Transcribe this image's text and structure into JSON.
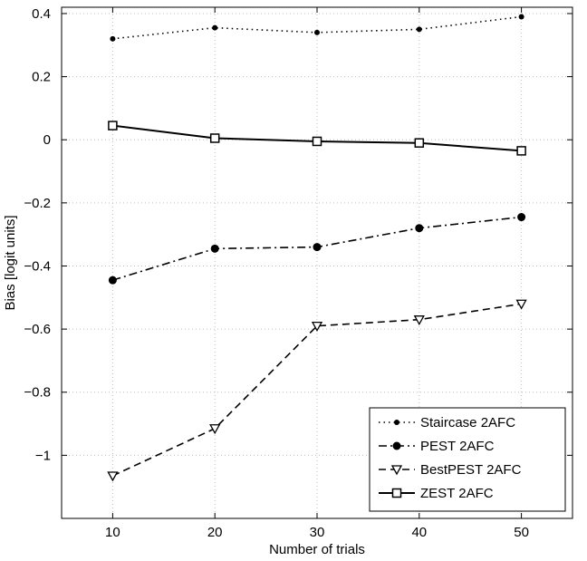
{
  "chart_data": {
    "type": "line",
    "title": "",
    "xlabel": "Number of trials",
    "ylabel": "Bias [logit units]",
    "x": [
      10,
      20,
      30,
      40,
      50
    ],
    "xticks": [
      "10",
      "20",
      "30",
      "40",
      "50"
    ],
    "yticks": [
      "0.4",
      "0.2",
      "0",
      "−0.2",
      "−0.4",
      "−0.6",
      "−0.8",
      "−1"
    ],
    "xlim": [
      5,
      55
    ],
    "ylim": [
      -1.2,
      0.42
    ],
    "grid": true,
    "legend_position": "bottom-right",
    "series": [
      {
        "name": "Staircase 2AFC",
        "values": [
          0.32,
          0.355,
          0.34,
          0.35,
          0.39
        ],
        "line": "dotted",
        "marker": "dot"
      },
      {
        "name": "PEST 2AFC",
        "values": [
          -0.445,
          -0.345,
          -0.34,
          -0.28,
          -0.245
        ],
        "line": "dashdot",
        "marker": "circle"
      },
      {
        "name": "BestPEST 2AFC",
        "values": [
          -1.065,
          -0.915,
          -0.59,
          -0.57,
          -0.52
        ],
        "line": "dashed",
        "marker": "triangle-down"
      },
      {
        "name": "ZEST 2AFC",
        "values": [
          0.045,
          0.005,
          -0.005,
          -0.01,
          -0.035
        ],
        "line": "solid",
        "marker": "square"
      }
    ]
  }
}
